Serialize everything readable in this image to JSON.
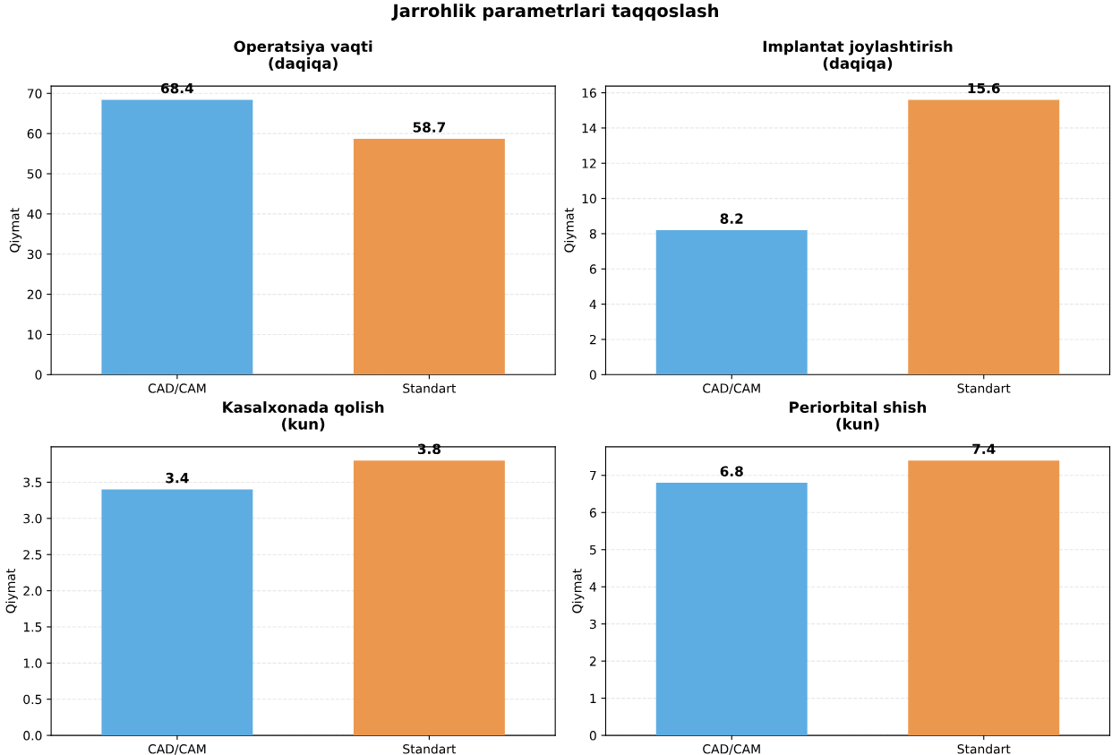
{
  "chart_data": [
    {
      "type": "other",
      "title": "Jarrohlik parametrlari taqqoslash"
    },
    {
      "type": "bar",
      "title": "Operatsiya vaqti\n(daqiqa)",
      "ylabel": "Qiymat",
      "categories": [
        "CAD/CAM",
        "Standart"
      ],
      "values": [
        68.4,
        58.7
      ],
      "colors": [
        "#5dade2",
        "#eb984e"
      ],
      "ylim": [
        0,
        71.82
      ],
      "yticks": [
        0,
        10,
        20,
        30,
        40,
        50,
        60,
        70
      ],
      "grid": "y",
      "data_labels": true
    },
    {
      "type": "bar",
      "title": "Implantat joylashtirish\n(daqiqa)",
      "ylabel": "Qiymat",
      "categories": [
        "CAD/CAM",
        "Standart"
      ],
      "values": [
        8.2,
        15.6
      ],
      "colors": [
        "#5dade2",
        "#eb984e"
      ],
      "ylim": [
        0,
        16.38
      ],
      "yticks": [
        0,
        2,
        4,
        6,
        8,
        10,
        12,
        14,
        16
      ],
      "grid": "y",
      "data_labels": true
    },
    {
      "type": "bar",
      "title": "Kasalxonada qolish\n(kun)",
      "ylabel": "Qiymat",
      "categories": [
        "CAD/CAM",
        "Standart"
      ],
      "values": [
        3.4,
        3.8
      ],
      "colors": [
        "#5dade2",
        "#eb984e"
      ],
      "ylim": [
        0,
        3.99
      ],
      "yticks": [
        {
          "value": 0,
          "label": "0.0"
        },
        {
          "value": 0.5,
          "label": "0.5"
        },
        {
          "value": 1,
          "label": "1.0"
        },
        {
          "value": 1.5,
          "label": "1.5"
        },
        {
          "value": 2,
          "label": "2.0"
        },
        {
          "value": 2.5,
          "label": "2.5"
        },
        {
          "value": 3,
          "label": "3.0"
        },
        {
          "value": 3.5,
          "label": "3.5"
        }
      ],
      "grid": "y",
      "data_labels": true
    },
    {
      "type": "bar",
      "title": "Periorbital shish\n(kun)",
      "ylabel": "Qiymat",
      "categories": [
        "CAD/CAM",
        "Standart"
      ],
      "values": [
        6.8,
        7.4
      ],
      "colors": [
        "#5dade2",
        "#eb984e"
      ],
      "ylim": [
        0,
        7.77
      ],
      "yticks": [
        0,
        1,
        2,
        3,
        4,
        5,
        6,
        7
      ],
      "grid": "y",
      "data_labels": true
    }
  ]
}
